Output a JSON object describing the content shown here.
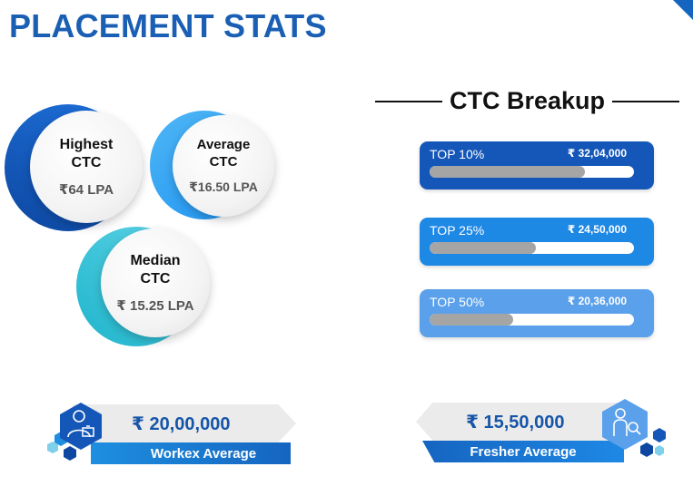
{
  "title": "PLACEMENT STATS",
  "stats": [
    {
      "label_line1": "Highest",
      "label_line2": "CTC",
      "value": "₹64 LPA"
    },
    {
      "label_line1": "Average",
      "label_line2": "CTC",
      "value": "₹16.50 LPA"
    },
    {
      "label_line1": "Median",
      "label_line2": "CTC",
      "value": "₹ 15.25 LPA"
    }
  ],
  "breakup": {
    "title": "CTC Breakup",
    "tiers": [
      {
        "label": "TOP 10%",
        "amount": "₹ 32,04,000",
        "fill_percent": 76,
        "color": "#1557b8"
      },
      {
        "label": "TOP 25%",
        "amount": "₹ 24,50,000",
        "fill_percent": 52,
        "color": "#1e88e5"
      },
      {
        "label": "TOP 50%",
        "amount": "₹ 20,36,000",
        "fill_percent": 41,
        "color": "#5aa0ea"
      }
    ]
  },
  "workex": {
    "amount": "₹ 20,00,000",
    "label": "Workex Average",
    "icon": "professional-person-icon"
  },
  "fresher": {
    "amount": "₹ 15,50,000",
    "label": "Fresher Average",
    "icon": "person-search-icon"
  },
  "colors": {
    "accent": "#1a5fb4",
    "dark_blue": "#1557b8",
    "light_blue": "#42a5f5",
    "teal": "#26c6da"
  }
}
